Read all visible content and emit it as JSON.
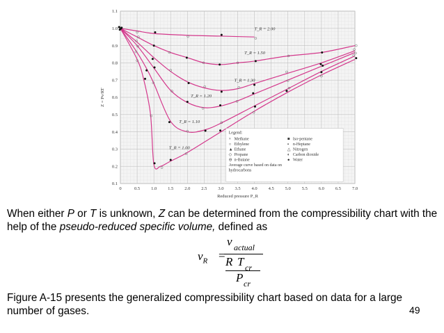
{
  "chart_data": {
    "type": "line",
    "title": "",
    "xlabel": "Reduced pressure P_R",
    "ylabel": "Z = Pv/RT",
    "xlim": [
      0,
      7.0
    ],
    "ylim": [
      0.1,
      1.1
    ],
    "x_ticks": [
      "0",
      "0.5",
      "1.0",
      "1.5",
      "2.0",
      "2.5",
      "3.0",
      "3.5",
      "4.0",
      "4.5",
      "5.0",
      "5.5",
      "6.0",
      "6.5",
      "7.0"
    ],
    "y_ticks": [
      "0.1",
      "0.2",
      "0.3",
      "0.4",
      "0.5",
      "0.6",
      "0.7",
      "0.8",
      "0.9",
      "1.0",
      "1.1"
    ],
    "grid": true,
    "curve_color": "#d4388c",
    "series": [
      {
        "name": "T_R = 2.00",
        "x": [
          0,
          0.5,
          1.0,
          2.0,
          3.0,
          4.0
        ],
        "y": [
          1.0,
          0.985,
          0.97,
          0.96,
          0.955,
          0.95
        ]
      },
      {
        "name": "T_R = 1.50",
        "x": [
          0,
          0.5,
          1.0,
          1.5,
          2.0,
          2.5,
          3.0,
          3.5,
          4.0,
          5.0,
          6.0,
          7.0
        ],
        "y": [
          1.0,
          0.95,
          0.9,
          0.86,
          0.83,
          0.8,
          0.79,
          0.8,
          0.81,
          0.84,
          0.86,
          0.9
        ]
      },
      {
        "name": "T_R = 1.30",
        "x": [
          0,
          0.5,
          1.0,
          1.5,
          2.0,
          2.5,
          3.0,
          3.5,
          4.0,
          5.0,
          6.0,
          7.0
        ],
        "y": [
          1.0,
          0.92,
          0.83,
          0.75,
          0.69,
          0.655,
          0.64,
          0.65,
          0.68,
          0.74,
          0.8,
          0.87
        ]
      },
      {
        "name": "T_R = 1.20",
        "x": [
          0,
          0.5,
          1.0,
          1.5,
          2.0,
          2.5,
          3.0,
          3.5,
          4.0,
          5.0,
          6.0,
          7.0
        ],
        "y": [
          1.0,
          0.9,
          0.77,
          0.64,
          0.57,
          0.54,
          0.55,
          0.58,
          0.62,
          0.7,
          0.78,
          0.86
        ]
      },
      {
        "name": "T_R = 1.10",
        "x": [
          0,
          0.5,
          0.8,
          1.0,
          1.5,
          2.0,
          2.5,
          3.0,
          4.0,
          5.0,
          6.0,
          7.0
        ],
        "y": [
          1.0,
          0.86,
          0.76,
          0.68,
          0.46,
          0.4,
          0.41,
          0.45,
          0.55,
          0.65,
          0.75,
          0.84
        ]
      },
      {
        "name": "T_R = 1.00",
        "x": [
          0,
          0.5,
          0.7,
          0.9,
          1.0,
          1.2,
          1.5,
          2.0,
          3.0,
          4.0,
          5.0,
          6.0,
          7.0
        ],
        "y": [
          1.0,
          0.82,
          0.7,
          0.5,
          0.21,
          0.2,
          0.23,
          0.28,
          0.4,
          0.52,
          0.63,
          0.73,
          0.82
        ]
      }
    ],
    "curve_labels": [
      "T_R = 2.00",
      "T_R = 1.50",
      "T_R = 1.30",
      "T_R = 1.20",
      "T_R = 1.10",
      "T_R = 1.00"
    ],
    "legend": {
      "title": "Legend:",
      "placement": "bottom-right",
      "entries": [
        "Methane",
        "Ethylene",
        "Ethane",
        "Propane",
        "n-Butane",
        "Iso-pentane",
        "n-Heptane",
        "Nitrogen",
        "Carbon dioxide",
        "Water"
      ],
      "note": "Average curve based on data on hydrocarbons"
    }
  },
  "text": {
    "para1_a": "When either ",
    "para1_P": "P",
    "para1_b": " or ",
    "para1_T": "T",
    "para1_c": " is unknown, ",
    "para1_Z": "Z",
    "para1_d": " can be determined from the compressibility chart with the help of the ",
    "para1_em": "pseudo-reduced specific volume,",
    "para1_e": " defined as",
    "para2": "Figure A-15 presents the generalized compressibility chart based on data for a large number of gases.",
    "page_number": "49"
  },
  "formula": {
    "lhs_var": "v",
    "lhs_sub": "R",
    "equals": "=",
    "num_var": "v",
    "num_sub": "actual",
    "mid_R": "R",
    "mid_T": "T",
    "mid_sub": "cr",
    "den_var": "P",
    "den_sub": "cr"
  }
}
